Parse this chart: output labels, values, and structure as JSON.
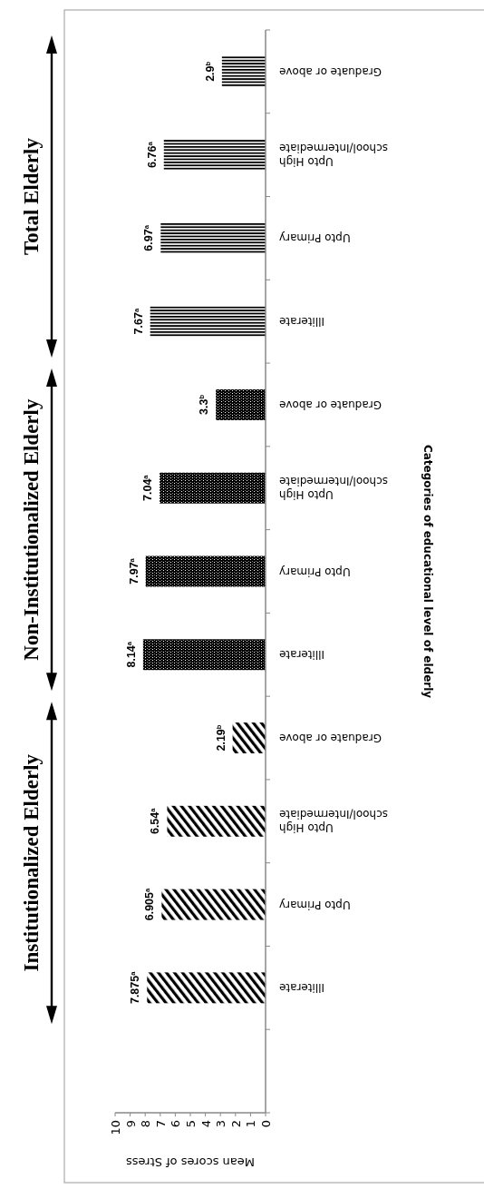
{
  "chart_data": {
    "type": "bar",
    "orientation": "horizontal",
    "xlabel": "Mean scores of Stress",
    "ylabel": "Categories of educational level of elderly",
    "categories": [
      "Graduate or above",
      "Upto High school/Intermediate",
      "Upto Primary",
      "Illiterate",
      "Graduate or above",
      "Upto High school/Intermediate",
      "Upto Primary",
      "Illiterate",
      "Graduate or above",
      "Upto High school/Intermediate",
      "Upto Primary",
      "Illiterate",
      null
    ],
    "series": [
      {
        "color": "#000000",
        "values": [
          2.9,
          6.76,
          6.97,
          7.67,
          null,
          null,
          null,
          null,
          null,
          null,
          null,
          null,
          null
        ],
        "value_labels": [
          "2.9$^{b}$",
          "6.76$^{a}$",
          "6.97$^{a}$",
          "7.67$^{a}$",
          null,
          null,
          null,
          null,
          null,
          null,
          null,
          null,
          null
        ]
      },
      {
        "color": "#000000",
        "values": [
          null,
          null,
          null,
          null,
          3.3,
          7.04,
          7.97,
          8.14,
          null,
          null,
          null,
          null,
          null
        ],
        "value_labels": [
          null,
          null,
          null,
          null,
          "3.3$^{b}$",
          "7.04$^{a}$",
          "7.97$^{a}$",
          "8.14$^{a}$",
          null,
          null,
          null,
          null,
          null
        ]
      },
      {
        "color": "#000000",
        "values": [
          null,
          null,
          null,
          null,
          null,
          null,
          null,
          null,
          2.19,
          6.54,
          6.905,
          7.875,
          null
        ],
        "value_labels": [
          null,
          null,
          null,
          null,
          null,
          null,
          null,
          null,
          "2.19$^{b}$",
          "6.54$^{a}$",
          "6.905$^{a}$",
          "7.875$^{a}$",
          null
        ]
      }
    ],
    "xlim": [
      10,
      0
    ],
    "xticks": [
      10,
      9,
      8,
      7,
      6,
      5,
      4,
      3,
      2,
      1,
      0
    ],
    "annotations": [
      "Total Elderly",
      "Non-Institutionalized Elderly",
      "Institutionalized Elderly"
    ]
  }
}
